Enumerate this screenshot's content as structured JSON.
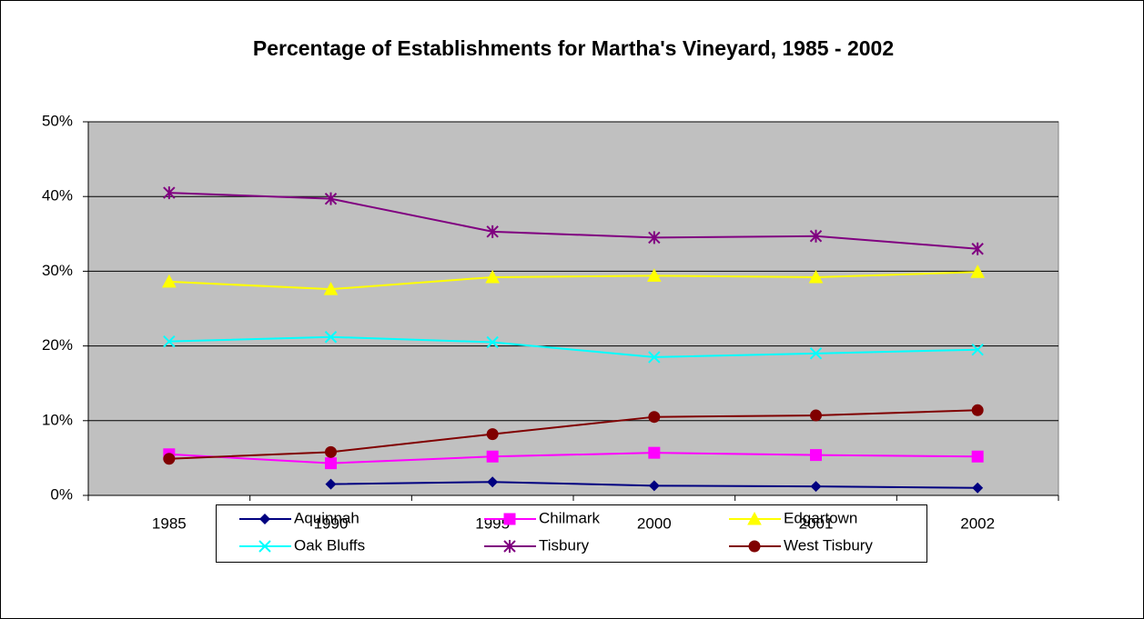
{
  "chart_data": {
    "type": "line",
    "title": "Percentage of Establishments for Martha's Vineyard, 1985 - 2002",
    "categories": [
      "1985",
      "1990",
      "1995",
      "2000",
      "2001",
      "2002"
    ],
    "series": [
      {
        "name": "Aquinnah",
        "color": "#000080",
        "marker": "diamond",
        "values": [
          null,
          1.5,
          1.8,
          1.3,
          1.2,
          1.0
        ]
      },
      {
        "name": "Chilmark",
        "color": "#FF00FF",
        "marker": "square",
        "values": [
          5.5,
          4.3,
          5.2,
          5.7,
          5.4,
          5.2
        ]
      },
      {
        "name": "Edgartown",
        "color": "#FFFF00",
        "marker": "triangle",
        "values": [
          28.6,
          27.6,
          29.2,
          29.4,
          29.2,
          29.9
        ]
      },
      {
        "name": "Oak Bluffs",
        "color": "#00FFFF",
        "marker": "x",
        "values": [
          20.6,
          21.2,
          20.5,
          18.5,
          19.0,
          19.5
        ]
      },
      {
        "name": "Tisbury",
        "color": "#800080",
        "marker": "star",
        "values": [
          40.5,
          39.7,
          35.3,
          34.5,
          34.7,
          33.0
        ]
      },
      {
        "name": "West Tisbury",
        "color": "#800000",
        "marker": "circle",
        "values": [
          4.9,
          5.8,
          8.2,
          10.5,
          10.7,
          11.4
        ]
      }
    ],
    "ylim": [
      0,
      50
    ],
    "yticks": [
      {
        "value": 0,
        "label": "0%"
      },
      {
        "value": 10,
        "label": "10%"
      },
      {
        "value": 20,
        "label": "20%"
      },
      {
        "value": 30,
        "label": "30%"
      },
      {
        "value": 40,
        "label": "40%"
      },
      {
        "value": 50,
        "label": "50%"
      }
    ],
    "grid": true,
    "legend": "bottom"
  }
}
